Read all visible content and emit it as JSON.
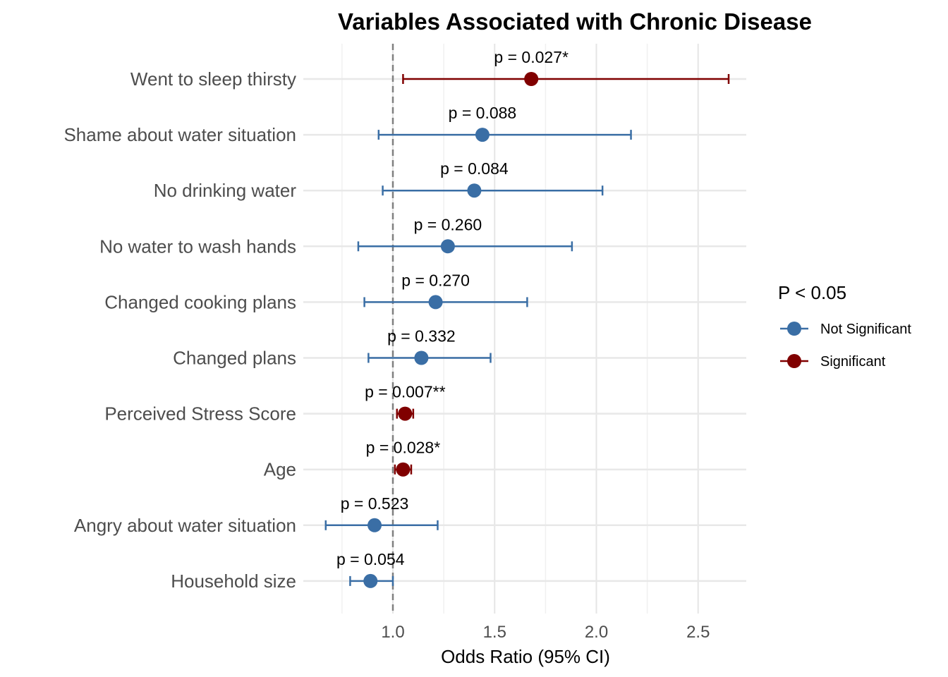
{
  "chart_data": {
    "type": "scatter",
    "subtype": "forest-plot",
    "title": "Variables Associated with Chronic Disease",
    "xlabel": "Odds Ratio (95% CI)",
    "ylabel": "",
    "xlim": [
      0.6,
      2.75
    ],
    "xticks": [
      "1.0",
      "1.5",
      "2.0",
      "2.5"
    ],
    "xtick_values": [
      1.0,
      1.5,
      2.0,
      2.5
    ],
    "reference_line": 1.0,
    "grid": true,
    "legend": {
      "title": "P < 0.05",
      "position": "right",
      "items": [
        {
          "label": "Not Significant",
          "color": "#3a6ea5"
        },
        {
          "label": "Significant",
          "color": "#800000"
        }
      ]
    },
    "rows": [
      {
        "label": "Went to sleep thirsty",
        "or": 1.68,
        "lower": 1.05,
        "upper": 2.65,
        "p_label": "p = 0.027*",
        "significant": true
      },
      {
        "label": "Shame about water situation",
        "or": 1.44,
        "lower": 0.93,
        "upper": 2.17,
        "p_label": "p = 0.088",
        "significant": false
      },
      {
        "label": "No drinking water",
        "or": 1.4,
        "lower": 0.95,
        "upper": 2.03,
        "p_label": "p = 0.084",
        "significant": false
      },
      {
        "label": "No water to wash hands",
        "or": 1.27,
        "lower": 0.83,
        "upper": 1.88,
        "p_label": "p = 0.260",
        "significant": false
      },
      {
        "label": "Changed cooking plans",
        "or": 1.21,
        "lower": 0.86,
        "upper": 1.66,
        "p_label": "p = 0.270",
        "significant": false
      },
      {
        "label": "Changed plans",
        "or": 1.14,
        "lower": 0.88,
        "upper": 1.48,
        "p_label": "p = 0.332",
        "significant": false
      },
      {
        "label": "Perceived Stress Score",
        "or": 1.06,
        "lower": 1.02,
        "upper": 1.1,
        "p_label": "p = 0.007**",
        "significant": true
      },
      {
        "label": "Age",
        "or": 1.05,
        "lower": 1.01,
        "upper": 1.09,
        "p_label": "p = 0.028*",
        "significant": true
      },
      {
        "label": "Angry about water situation",
        "or": 0.91,
        "lower": 0.67,
        "upper": 1.22,
        "p_label": "p = 0.523",
        "significant": false
      },
      {
        "label": "Household size",
        "or": 0.89,
        "lower": 0.79,
        "upper": 1.0,
        "p_label": "p = 0.054",
        "significant": false
      }
    ]
  }
}
